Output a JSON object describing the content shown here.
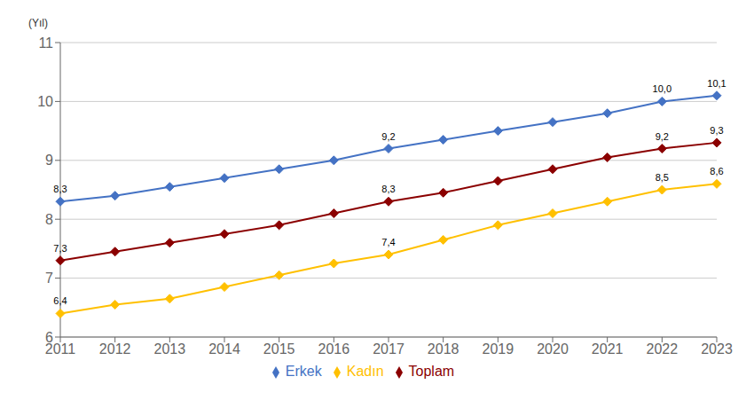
{
  "chart_data": {
    "type": "line",
    "y_label": "(Yıl)",
    "categories": [
      "2011",
      "2012",
      "2013",
      "2014",
      "2015",
      "2016",
      "2017",
      "2018",
      "2019",
      "2020",
      "2021",
      "2022",
      "2023"
    ],
    "series": [
      {
        "name": "Erkek",
        "color": "#4472C4",
        "values": [
          8.3,
          8.4,
          8.55,
          8.7,
          8.85,
          9.0,
          9.2,
          9.35,
          9.5,
          9.65,
          9.8,
          10.0,
          10.1
        ],
        "value_labels": [
          "8,3",
          null,
          null,
          null,
          null,
          null,
          "9,2",
          null,
          null,
          null,
          null,
          "10,0",
          "10,1"
        ]
      },
      {
        "name": "Kadın",
        "color": "#FFC000",
        "values": [
          6.4,
          6.55,
          6.65,
          6.85,
          7.05,
          7.25,
          7.4,
          7.65,
          7.9,
          8.1,
          8.3,
          8.5,
          8.6
        ],
        "value_labels": [
          "6,4",
          null,
          null,
          null,
          null,
          null,
          "7,4",
          null,
          null,
          null,
          null,
          "8,5",
          "8,6"
        ]
      },
      {
        "name": "Toplam",
        "color": "#8B0000",
        "values": [
          7.3,
          7.45,
          7.6,
          7.75,
          7.9,
          8.1,
          8.3,
          8.45,
          8.65,
          8.85,
          9.05,
          9.2,
          9.3
        ],
        "value_labels": [
          "7,3",
          null,
          null,
          null,
          null,
          null,
          "8,3",
          null,
          null,
          null,
          null,
          "9,2",
          "9,3"
        ]
      }
    ],
    "ylim": [
      6,
      11
    ],
    "yticks": [
      6,
      7,
      8,
      9,
      10,
      11
    ],
    "grid": true,
    "legend": "bottom",
    "marker": "diamond"
  }
}
